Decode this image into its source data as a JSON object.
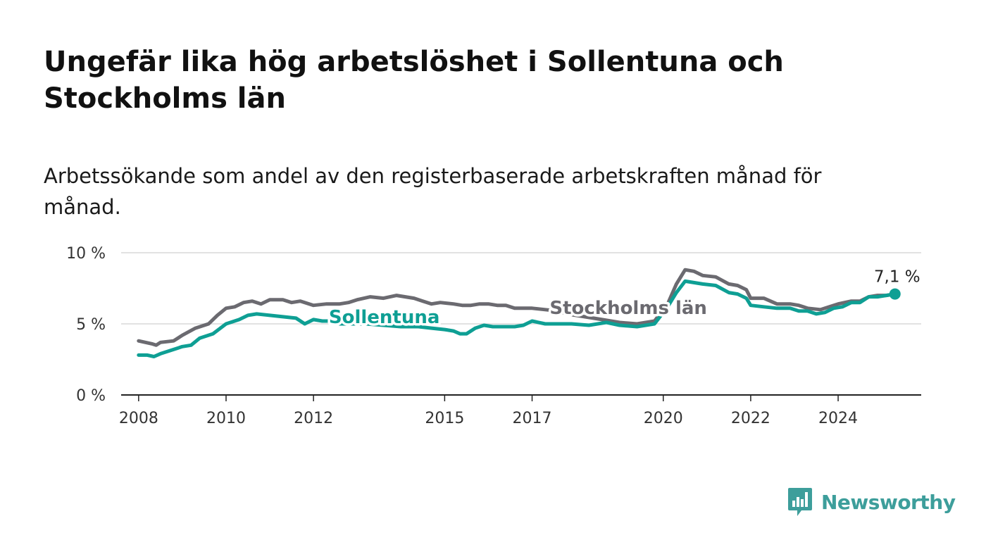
{
  "title": "Ungefär lika hög arbetslöshet i Sollentuna och Stockholms län",
  "subtitle": "Arbetssökande som andel av den registerbaserade arbetskraften månad för månad.",
  "brand": "Newsworthy",
  "chart_data": {
    "type": "line",
    "title": "Ungefär lika hög arbetslöshet i Sollentuna och Stockholms län",
    "subtitle": "Arbetssökande som andel av den registerbaserade arbetskraften månad för månad.",
    "xlabel": "",
    "ylabel": "",
    "xlim": [
      2007.6,
      2025.9
    ],
    "ylim": [
      0,
      10
    ],
    "y_ticks": [
      0,
      5,
      10
    ],
    "y_tick_labels": [
      "0 %",
      "5 %",
      "10 %"
    ],
    "x_ticks": [
      2008,
      2010,
      2012,
      2015,
      2017,
      2020,
      2022,
      2024
    ],
    "x_tick_labels": [
      "2008",
      "2010",
      "2012",
      "2015",
      "2017",
      "2020",
      "2022",
      "2024"
    ],
    "grid": true,
    "end_label": "7,1 %",
    "colors": {
      "Sollentuna": "#0e9f94",
      "Stockholms län": "#6b6a70"
    },
    "series": [
      {
        "name": "Stockholms län",
        "points": [
          [
            2008.0,
            3.8
          ],
          [
            2008.3,
            3.6
          ],
          [
            2008.4,
            3.5
          ],
          [
            2008.5,
            3.7
          ],
          [
            2008.8,
            3.8
          ],
          [
            2009.0,
            4.2
          ],
          [
            2009.3,
            4.7
          ],
          [
            2009.6,
            5.0
          ],
          [
            2009.8,
            5.6
          ],
          [
            2010.0,
            6.1
          ],
          [
            2010.2,
            6.2
          ],
          [
            2010.4,
            6.5
          ],
          [
            2010.6,
            6.6
          ],
          [
            2010.8,
            6.4
          ],
          [
            2011.0,
            6.7
          ],
          [
            2011.3,
            6.7
          ],
          [
            2011.5,
            6.5
          ],
          [
            2011.7,
            6.6
          ],
          [
            2012.0,
            6.3
          ],
          [
            2012.3,
            6.4
          ],
          [
            2012.6,
            6.4
          ],
          [
            2012.8,
            6.5
          ],
          [
            2013.0,
            6.7
          ],
          [
            2013.3,
            6.9
          ],
          [
            2013.6,
            6.8
          ],
          [
            2013.9,
            7.0
          ],
          [
            2014.1,
            6.9
          ],
          [
            2014.3,
            6.8
          ],
          [
            2014.5,
            6.6
          ],
          [
            2014.7,
            6.4
          ],
          [
            2014.9,
            6.5
          ],
          [
            2015.2,
            6.4
          ],
          [
            2015.4,
            6.3
          ],
          [
            2015.6,
            6.3
          ],
          [
            2015.8,
            6.4
          ],
          [
            2016.0,
            6.4
          ],
          [
            2016.2,
            6.3
          ],
          [
            2016.4,
            6.3
          ],
          [
            2016.6,
            6.1
          ],
          [
            2016.8,
            6.1
          ],
          [
            2017.0,
            6.1
          ],
          [
            2017.3,
            6.0
          ],
          [
            2017.6,
            5.9
          ],
          [
            2017.8,
            5.7
          ],
          [
            2018.2,
            5.5
          ],
          [
            2018.6,
            5.3
          ],
          [
            2019.0,
            5.1
          ],
          [
            2019.4,
            5.0
          ],
          [
            2019.8,
            5.2
          ],
          [
            2020.1,
            6.4
          ],
          [
            2020.3,
            7.8
          ],
          [
            2020.5,
            8.8
          ],
          [
            2020.7,
            8.7
          ],
          [
            2020.9,
            8.4
          ],
          [
            2021.2,
            8.3
          ],
          [
            2021.5,
            7.8
          ],
          [
            2021.7,
            7.7
          ],
          [
            2021.9,
            7.4
          ],
          [
            2022.0,
            6.8
          ],
          [
            2022.3,
            6.8
          ],
          [
            2022.6,
            6.4
          ],
          [
            2022.9,
            6.4
          ],
          [
            2023.1,
            6.3
          ],
          [
            2023.3,
            6.1
          ],
          [
            2023.6,
            6.0
          ],
          [
            2023.8,
            6.2
          ],
          [
            2024.0,
            6.4
          ],
          [
            2024.3,
            6.6
          ],
          [
            2024.5,
            6.6
          ],
          [
            2024.7,
            6.9
          ],
          [
            2024.9,
            7.0
          ],
          [
            2025.1,
            7.0
          ],
          [
            2025.3,
            7.1
          ]
        ]
      },
      {
        "name": "Sollentuna",
        "points": [
          [
            2008.0,
            2.8
          ],
          [
            2008.2,
            2.8
          ],
          [
            2008.35,
            2.7
          ],
          [
            2008.5,
            2.9
          ],
          [
            2008.8,
            3.2
          ],
          [
            2009.0,
            3.4
          ],
          [
            2009.2,
            3.5
          ],
          [
            2009.4,
            4.0
          ],
          [
            2009.7,
            4.3
          ],
          [
            2010.0,
            5.0
          ],
          [
            2010.3,
            5.3
          ],
          [
            2010.5,
            5.6
          ],
          [
            2010.7,
            5.7
          ],
          [
            2011.0,
            5.6
          ],
          [
            2011.3,
            5.5
          ],
          [
            2011.6,
            5.4
          ],
          [
            2011.8,
            5.0
          ],
          [
            2012.0,
            5.3
          ],
          [
            2012.2,
            5.2
          ],
          [
            2012.4,
            5.2
          ],
          [
            2012.6,
            5.0
          ],
          [
            2012.8,
            5.0
          ],
          [
            2013.2,
            5.0
          ],
          [
            2013.6,
            4.9
          ],
          [
            2014.0,
            4.8
          ],
          [
            2014.4,
            4.8
          ],
          [
            2014.7,
            4.7
          ],
          [
            2015.0,
            4.6
          ],
          [
            2015.2,
            4.5
          ],
          [
            2015.35,
            4.3
          ],
          [
            2015.5,
            4.3
          ],
          [
            2015.7,
            4.7
          ],
          [
            2015.9,
            4.9
          ],
          [
            2016.1,
            4.8
          ],
          [
            2016.4,
            4.8
          ],
          [
            2016.6,
            4.8
          ],
          [
            2016.8,
            4.9
          ],
          [
            2017.0,
            5.2
          ],
          [
            2017.3,
            5.0
          ],
          [
            2017.6,
            5.0
          ],
          [
            2017.9,
            5.0
          ],
          [
            2018.3,
            4.9
          ],
          [
            2018.7,
            5.1
          ],
          [
            2019.0,
            4.9
          ],
          [
            2019.4,
            4.8
          ],
          [
            2019.8,
            5.0
          ],
          [
            2020.1,
            6.2
          ],
          [
            2020.3,
            7.2
          ],
          [
            2020.5,
            8.0
          ],
          [
            2020.7,
            7.9
          ],
          [
            2020.9,
            7.8
          ],
          [
            2021.2,
            7.7
          ],
          [
            2021.5,
            7.2
          ],
          [
            2021.7,
            7.1
          ],
          [
            2021.9,
            6.8
          ],
          [
            2022.0,
            6.3
          ],
          [
            2022.3,
            6.2
          ],
          [
            2022.6,
            6.1
          ],
          [
            2022.9,
            6.1
          ],
          [
            2023.1,
            5.9
          ],
          [
            2023.3,
            5.9
          ],
          [
            2023.5,
            5.7
          ],
          [
            2023.7,
            5.8
          ],
          [
            2023.9,
            6.1
          ],
          [
            2024.1,
            6.2
          ],
          [
            2024.3,
            6.5
          ],
          [
            2024.5,
            6.5
          ],
          [
            2024.7,
            6.9
          ],
          [
            2024.9,
            6.9
          ],
          [
            2025.1,
            7.0
          ],
          [
            2025.3,
            7.1
          ]
        ]
      }
    ]
  }
}
